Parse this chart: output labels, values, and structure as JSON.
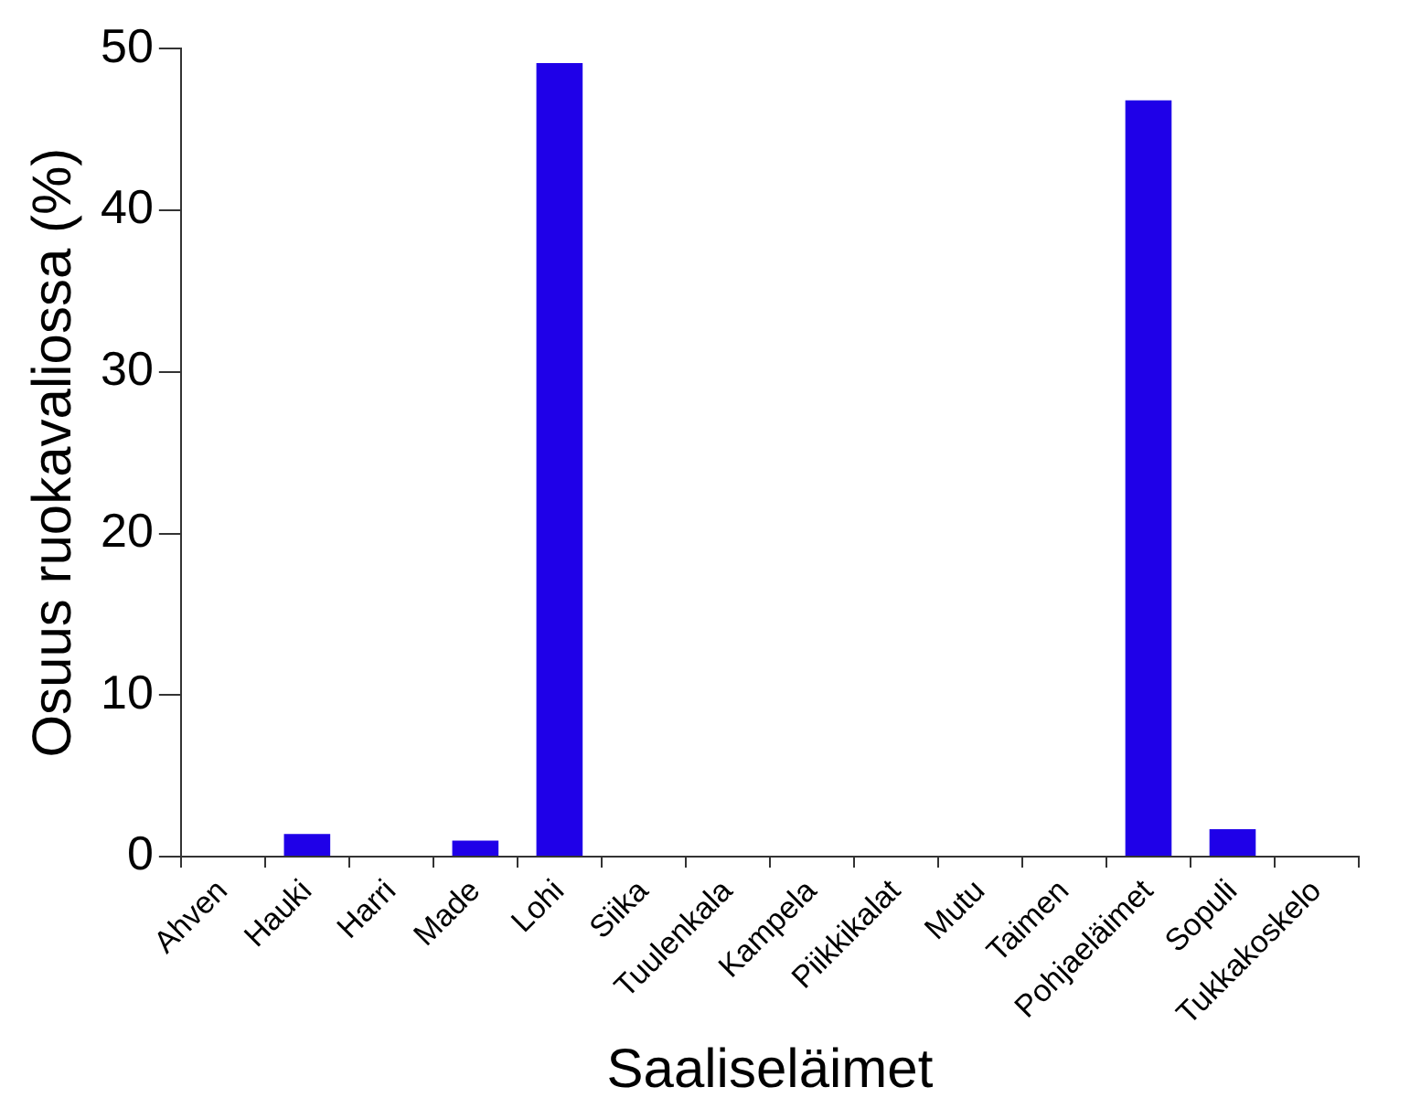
{
  "chart_data": {
    "type": "bar",
    "xlabel": "Saaliseläimet",
    "ylabel": "Osuus ruokavaliossa (%)",
    "categories": [
      "Ahven",
      "Hauki",
      "Harri",
      "Made",
      "Lohi",
      "Siika",
      "Tuulenkala",
      "Kampela",
      "Piikkikalat",
      "Mutu",
      "Taimen",
      "Pohjaeläimet",
      "Sopuli",
      "Tukkakoskelo"
    ],
    "values": [
      0,
      1.4,
      0,
      1.0,
      49.1,
      0,
      0,
      0,
      0,
      0,
      0,
      46.8,
      1.7,
      0
    ],
    "color": "#1f00e8",
    "ylim": [
      0,
      50
    ],
    "yticks": [
      0,
      10,
      20,
      30,
      40,
      50
    ],
    "grid": false,
    "legend": false
  }
}
